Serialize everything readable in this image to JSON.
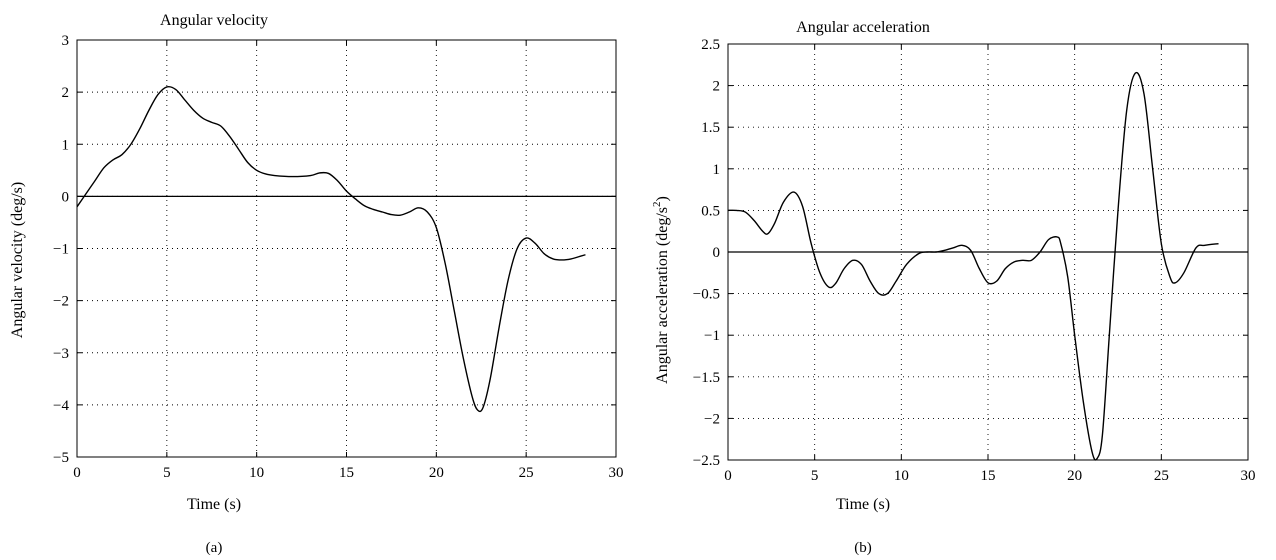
{
  "chart_data": [
    {
      "type": "line",
      "title": "Angular velocity",
      "xlabel": "Time (s)",
      "ylabel": "Angular velocity (deg/s)",
      "caption": "(a)",
      "xlim": [
        0,
        30
      ],
      "ylim": [
        -5,
        3
      ],
      "xticks": [
        0,
        5,
        10,
        15,
        20,
        25,
        30
      ],
      "yticks": [
        3,
        2,
        1,
        0,
        -1,
        -2,
        -3,
        -4,
        -5
      ],
      "xtick_labels": [
        "0",
        "5",
        "10",
        "15",
        "20",
        "25",
        "30"
      ],
      "ytick_labels": [
        "3",
        "2",
        "1",
        "0",
        "−1",
        "−2",
        "−3",
        "−4",
        "−5"
      ],
      "grid": true,
      "zero_line": true,
      "series": [
        {
          "x": [
            0,
            0.5,
            1,
            1.5,
            2,
            2.5,
            3,
            3.5,
            4,
            4.5,
            5,
            5.5,
            6,
            6.5,
            7,
            7.5,
            8,
            8.5,
            9,
            9.5,
            10,
            10.5,
            11,
            12,
            13,
            13.5,
            14,
            14.5,
            15,
            15.5,
            16,
            16.5,
            17,
            17.5,
            18,
            18.5,
            19,
            19.5,
            20,
            20.5,
            21,
            21.5,
            22,
            22.3,
            22.6,
            23,
            23.5,
            24,
            24.5,
            25,
            25.5,
            26,
            26.5,
            27,
            27.5,
            28,
            28.3
          ],
          "y": [
            -0.2,
            0.05,
            0.3,
            0.55,
            0.7,
            0.8,
            1.0,
            1.3,
            1.65,
            1.95,
            2.1,
            2.05,
            1.85,
            1.65,
            1.5,
            1.42,
            1.35,
            1.15,
            0.9,
            0.65,
            0.5,
            0.43,
            0.4,
            0.38,
            0.4,
            0.45,
            0.44,
            0.3,
            0.1,
            -0.05,
            -0.18,
            -0.25,
            -0.3,
            -0.35,
            -0.36,
            -0.3,
            -0.22,
            -0.3,
            -0.6,
            -1.3,
            -2.2,
            -3.1,
            -3.85,
            -4.1,
            -4.05,
            -3.5,
            -2.5,
            -1.6,
            -1.0,
            -0.8,
            -0.9,
            -1.1,
            -1.2,
            -1.22,
            -1.2,
            -1.15,
            -1.12
          ]
        }
      ]
    },
    {
      "type": "line",
      "title": "Angular acceleration",
      "xlabel": "Time (s)",
      "ylabel": "Angular acceleration (deg/s",
      "ylabel_sup": "2",
      "ylabel_end": ")",
      "caption": "(b)",
      "xlim": [
        0,
        30
      ],
      "ylim": [
        -2.5,
        2.5
      ],
      "xticks": [
        0,
        5,
        10,
        15,
        20,
        25,
        30
      ],
      "yticks": [
        2.5,
        2,
        1.5,
        1,
        0.5,
        0,
        -0.5,
        -1,
        -1.5,
        -2,
        -2.5
      ],
      "xtick_labels": [
        "0",
        "5",
        "10",
        "15",
        "20",
        "25",
        "30"
      ],
      "ytick_labels": [
        "2.5",
        "2",
        "1.5",
        "1",
        "0.5",
        "0",
        "−0.5",
        "−1",
        "−1.5",
        "−2",
        "−2.5"
      ],
      "grid": true,
      "zero_line": true,
      "series": [
        {
          "x": [
            0,
            0.5,
            1,
            1.5,
            2,
            2.3,
            2.7,
            3.2,
            3.8,
            4.3,
            4.8,
            5.3,
            5.8,
            6.2,
            6.7,
            7.2,
            7.7,
            8.2,
            8.7,
            9.2,
            9.7,
            10.3,
            11,
            11.5,
            12,
            12.5,
            13,
            13.5,
            14,
            14.5,
            15,
            15.5,
            16,
            16.5,
            17,
            17.5,
            18,
            18.5,
            19,
            19.2,
            19.6,
            20,
            20.5,
            21,
            21.3,
            21.6,
            22,
            22.5,
            23,
            23.5,
            24,
            24.5,
            25,
            25.5,
            25.8,
            26.3,
            27,
            27.5,
            28.3
          ],
          "y": [
            0.5,
            0.5,
            0.48,
            0.38,
            0.25,
            0.22,
            0.35,
            0.6,
            0.72,
            0.55,
            0.1,
            -0.25,
            -0.42,
            -0.38,
            -0.2,
            -0.1,
            -0.15,
            -0.35,
            -0.5,
            -0.5,
            -0.35,
            -0.15,
            -0.02,
            0,
            0,
            0.02,
            0.05,
            0.08,
            0.02,
            -0.2,
            -0.37,
            -0.35,
            -0.2,
            -0.12,
            -0.1,
            -0.1,
            0,
            0.15,
            0.18,
            0.1,
            -0.3,
            -1.0,
            -1.8,
            -2.4,
            -2.48,
            -2.2,
            -1.0,
            0.5,
            1.7,
            2.15,
            1.9,
            1.0,
            0.1,
            -0.3,
            -0.37,
            -0.25,
            0.05,
            0.08,
            0.1
          ]
        }
      ]
    }
  ]
}
